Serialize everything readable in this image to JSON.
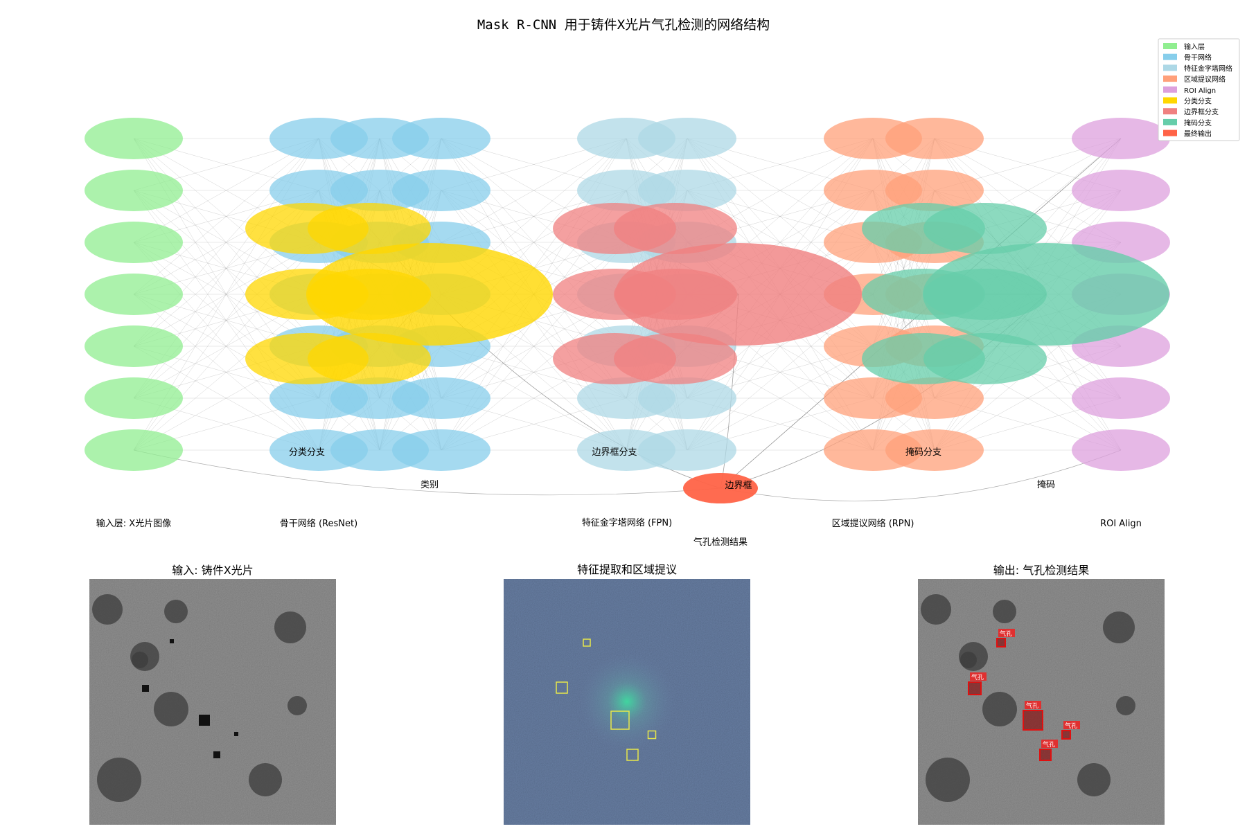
{
  "title": "Mask R-CNN 用于铸件X光片气孔检测的网络结构",
  "legend": [
    {
      "label": "输入层",
      "color": "#90EE90"
    },
    {
      "label": "骨干网络",
      "color": "#87CEEB"
    },
    {
      "label": "特征金字塔网络",
      "color": "#ADD8E6"
    },
    {
      "label": "区域提议网络",
      "color": "#FFA07A"
    },
    {
      "label": "ROI Align",
      "color": "#DDA0DD"
    },
    {
      "label": "分类分支",
      "color": "#FFD700"
    },
    {
      "label": "边界框分支",
      "color": "#F08080"
    },
    {
      "label": "掩码分支",
      "color": "#66CDAA"
    },
    {
      "label": "最终输出",
      "color": "#FF6347"
    }
  ],
  "layer_labels": {
    "input": "输入层: X光片图像",
    "backbone": "骨干网络 (ResNet)",
    "fpn": "特征金字塔网络 (FPN)",
    "rpn": "区域提议网络 (RPN)",
    "roi": "ROI Align"
  },
  "branch_labels": {
    "cls": "分类分支",
    "bbox": "边界框分支",
    "mask": "掩码分支"
  },
  "output_labels": {
    "category": "类别",
    "box": "边界框",
    "mask": "掩码",
    "result": "气孔检测结果"
  },
  "panels": [
    {
      "title": "输入: 铸件X光片"
    },
    {
      "title": "特征提取和区域提议"
    },
    {
      "title": "输出: 气孔检测结果"
    }
  ],
  "detection_label": "气孔",
  "detections_count": 5
}
